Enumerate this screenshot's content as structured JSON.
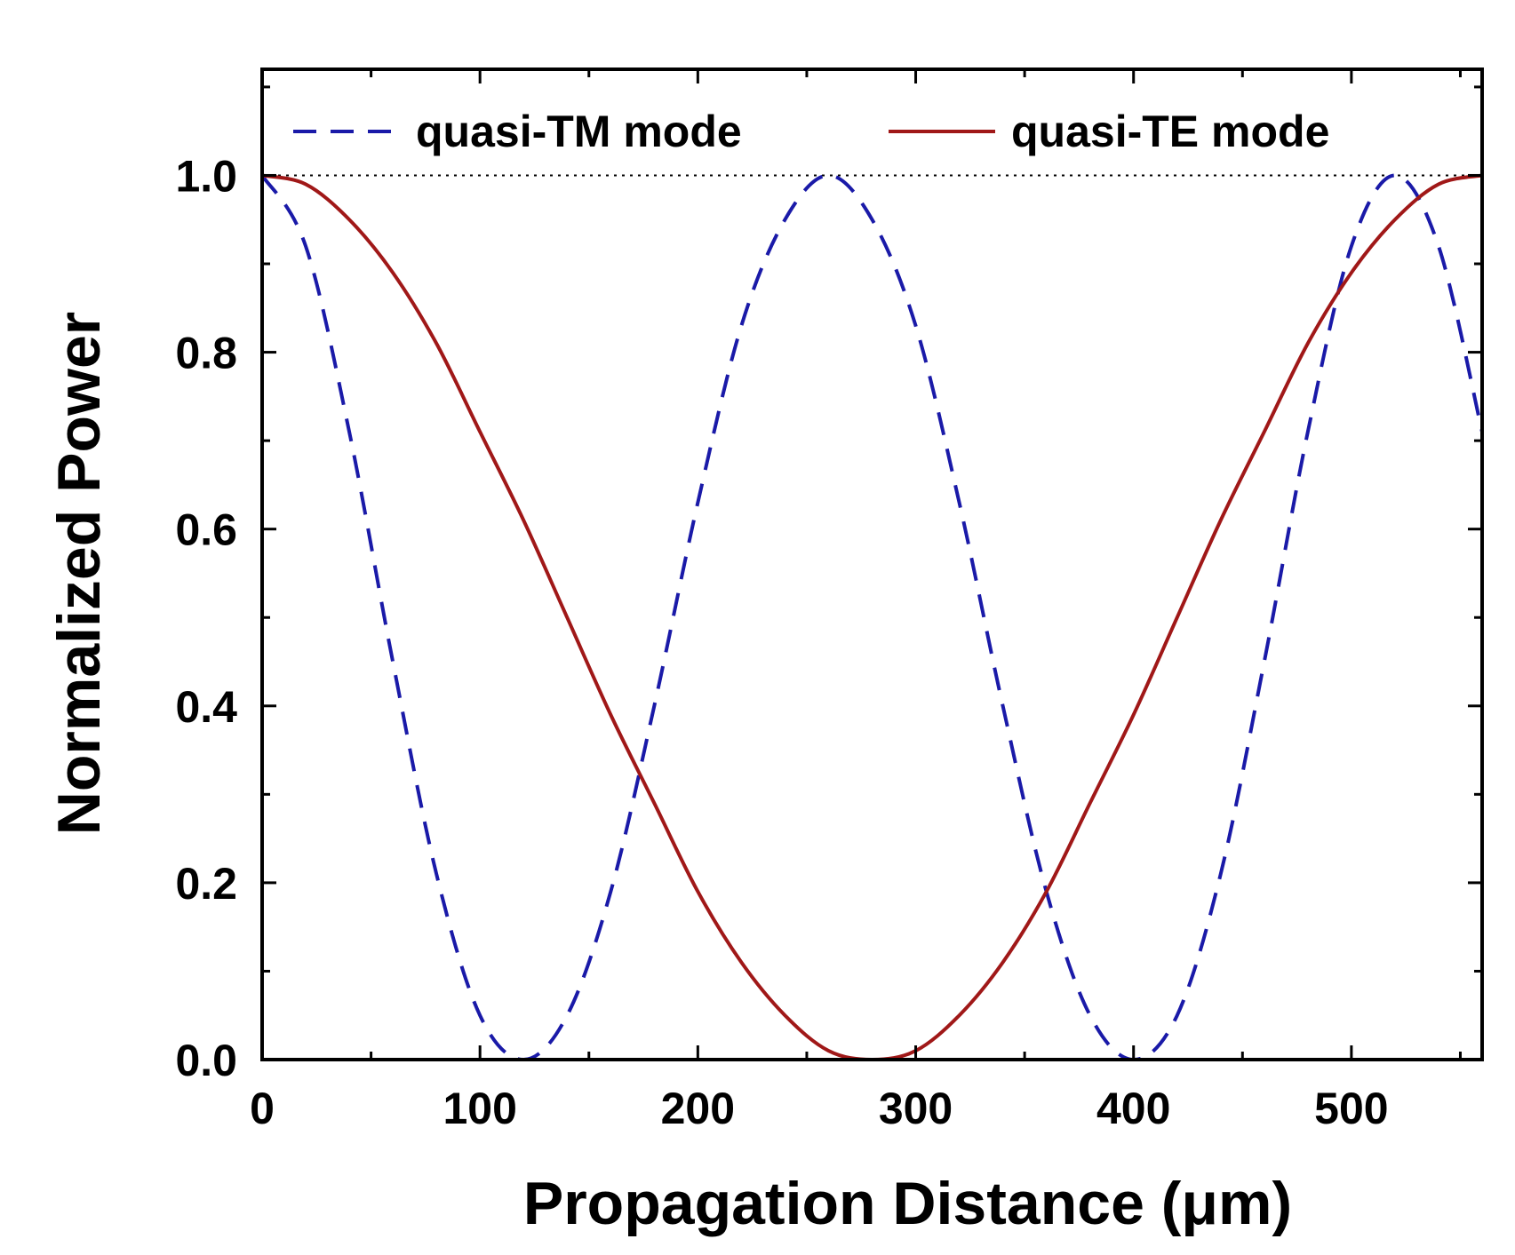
{
  "chart_data": {
    "type": "line",
    "title": "",
    "xlabel": "Propagation Distance (μm)",
    "ylabel": "Normalized Power",
    "xlim": [
      0,
      560
    ],
    "ylim": [
      0,
      1.12
    ],
    "xticks": [
      0,
      100,
      200,
      300,
      400,
      500
    ],
    "yticks": [
      0.0,
      0.2,
      0.4,
      0.6,
      0.8,
      1.0
    ],
    "xtick_labels": [
      "0",
      "100",
      "200",
      "300",
      "400",
      "500"
    ],
    "ytick_labels": [
      "0.0",
      "0.2",
      "0.4",
      "0.6",
      "0.8",
      "1.0"
    ],
    "reference_line": {
      "y": 1.0,
      "style": "dotted"
    },
    "legend_position": "top",
    "series": [
      {
        "name": "quasi-TM mode",
        "style": "dashed",
        "color": "#1a1aa8",
        "x": [
          0,
          20,
          40,
          60,
          80,
          100,
          120,
          140,
          160,
          180,
          200,
          220,
          240,
          260,
          280,
          300,
          320,
          340,
          360,
          380,
          400,
          420,
          440,
          460,
          480,
          500,
          520,
          540,
          560
        ],
        "values": [
          1.0,
          0.92,
          0.71,
          0.45,
          0.21,
          0.05,
          0.0,
          0.05,
          0.19,
          0.4,
          0.63,
          0.83,
          0.95,
          1.0,
          0.95,
          0.83,
          0.63,
          0.4,
          0.19,
          0.05,
          0.0,
          0.05,
          0.21,
          0.45,
          0.71,
          0.92,
          1.0,
          0.92,
          0.71
        ]
      },
      {
        "name": "quasi-TE mode",
        "style": "solid",
        "color": "#a01818",
        "x": [
          0,
          20,
          40,
          60,
          80,
          100,
          120,
          140,
          160,
          180,
          200,
          220,
          240,
          260,
          280,
          300,
          320,
          340,
          360,
          380,
          400,
          420,
          440,
          460,
          480,
          500,
          520,
          540,
          560
        ],
        "values": [
          1.0,
          0.99,
          0.95,
          0.89,
          0.81,
          0.71,
          0.61,
          0.5,
          0.39,
          0.29,
          0.19,
          0.11,
          0.05,
          0.01,
          0.0,
          0.01,
          0.05,
          0.11,
          0.19,
          0.29,
          0.39,
          0.5,
          0.61,
          0.71,
          0.81,
          0.89,
          0.95,
          0.99,
          1.0
        ]
      }
    ]
  }
}
